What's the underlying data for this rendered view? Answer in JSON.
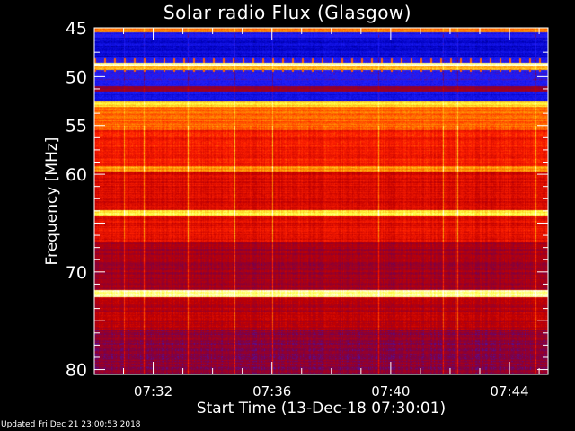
{
  "chart_data": {
    "type": "heatmap",
    "title": "Solar radio Flux (Glasgow)",
    "xlabel": "Start Time (13-Dec-18 07:30:01)",
    "ylabel": "Frequency [MHz]",
    "updated": "Updated Fri Dec 21 23:00:53 2018",
    "x_range": [
      "07:30:01",
      "07:45:18"
    ],
    "y_range_mhz": [
      45,
      80.5
    ],
    "x_ticks": [
      "07:32",
      "07:36",
      "07:40",
      "07:44"
    ],
    "y_ticks": [
      45,
      50,
      55,
      60,
      70,
      80
    ],
    "colormap": [
      "#000000",
      "#0000c0",
      "#2020ff",
      "#800040",
      "#c00000",
      "#ff2000",
      "#ff9000",
      "#ffff40",
      "#ffffff"
    ],
    "frequency_profile": [
      {
        "mhz": [
          45.0,
          45.5
        ],
        "level": 0.72
      },
      {
        "mhz": [
          45.5,
          46.0
        ],
        "level": 0.22
      },
      {
        "mhz": [
          46.0,
          48.0
        ],
        "level": 0.16
      },
      {
        "mhz": [
          48.0,
          48.6
        ],
        "level": 0.24
      },
      {
        "mhz": [
          48.6,
          48.95
        ],
        "level": 0.95
      },
      {
        "mhz": [
          48.95,
          49.3
        ],
        "level": 0.78
      },
      {
        "mhz": [
          49.3,
          51.0
        ],
        "level": 0.26
      },
      {
        "mhz": [
          51.0,
          51.5
        ],
        "level": 0.42
      },
      {
        "mhz": [
          51.5,
          52.5
        ],
        "level": 0.2
      },
      {
        "mhz": [
          52.5,
          53.1
        ],
        "level": 0.84
      },
      {
        "mhz": [
          53.1,
          55.5
        ],
        "level": 0.7
      },
      {
        "mhz": [
          55.5,
          59.2
        ],
        "level": 0.6
      },
      {
        "mhz": [
          59.2,
          59.7
        ],
        "level": 0.76
      },
      {
        "mhz": [
          59.7,
          63.7
        ],
        "level": 0.55
      },
      {
        "mhz": [
          63.7,
          64.2
        ],
        "level": 0.85
      },
      {
        "mhz": [
          64.2,
          67.0
        ],
        "level": 0.56
      },
      {
        "mhz": [
          67.0,
          71.9
        ],
        "level": 0.44
      },
      {
        "mhz": [
          71.9,
          72.6
        ],
        "level": 0.93
      },
      {
        "mhz": [
          72.6,
          76.0
        ],
        "level": 0.48
      },
      {
        "mhz": [
          76.0,
          80.5
        ],
        "level": 0.4
      }
    ]
  }
}
